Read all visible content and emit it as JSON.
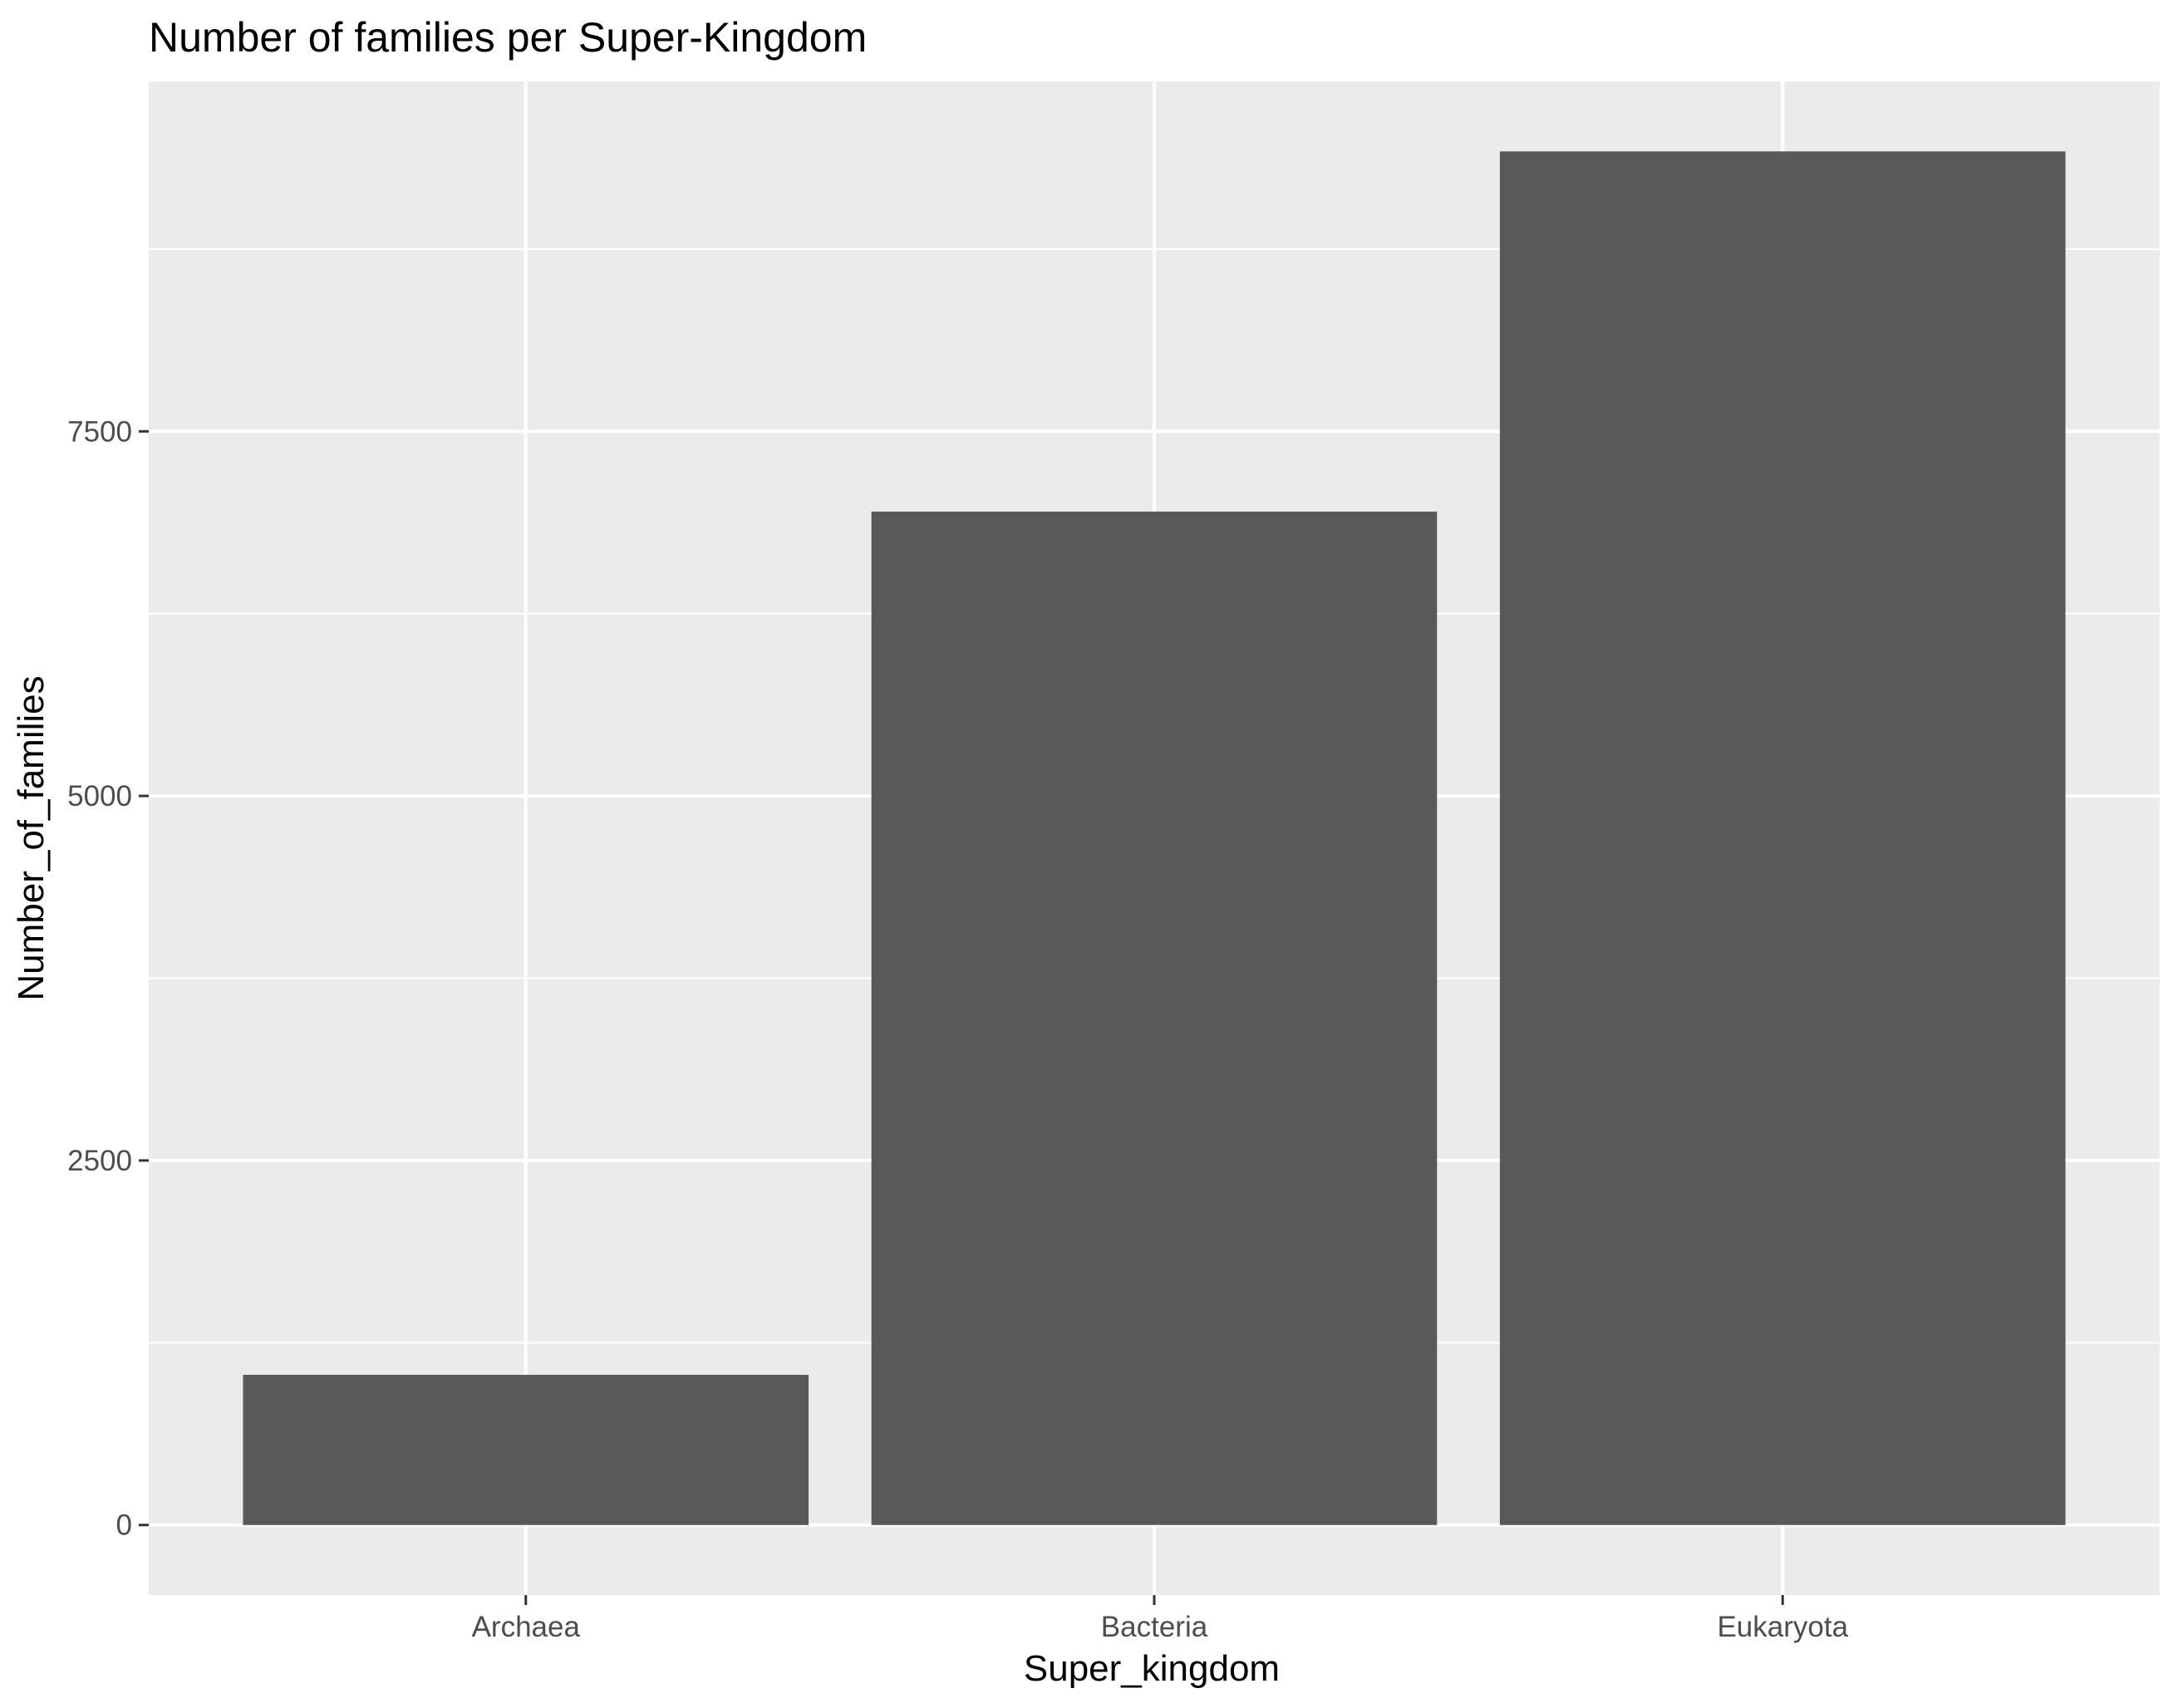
{
  "chart_data": {
    "type": "bar",
    "title": "Number of families per Super-Kingdom",
    "xlabel": "Super_kingdom",
    "ylabel": "Number_of_families",
    "categories": [
      "Archaea",
      "Bacteria",
      "Eukaryota"
    ],
    "values": [
      1030,
      6950,
      9420
    ],
    "ylim": [
      -480,
      9900
    ],
    "yticks": [
      0,
      2500,
      5000,
      7500
    ],
    "ytick_labels": [
      "0",
      "2500",
      "5000",
      "7500"
    ],
    "y_minor_ticks": [
      1250,
      3750,
      6250,
      8750
    ],
    "grid": true,
    "legend": "none",
    "colors": {
      "bar": "#595959",
      "panel_background": "#ebebeb",
      "grid": "#ffffff",
      "tick_mark": "#333333"
    }
  }
}
